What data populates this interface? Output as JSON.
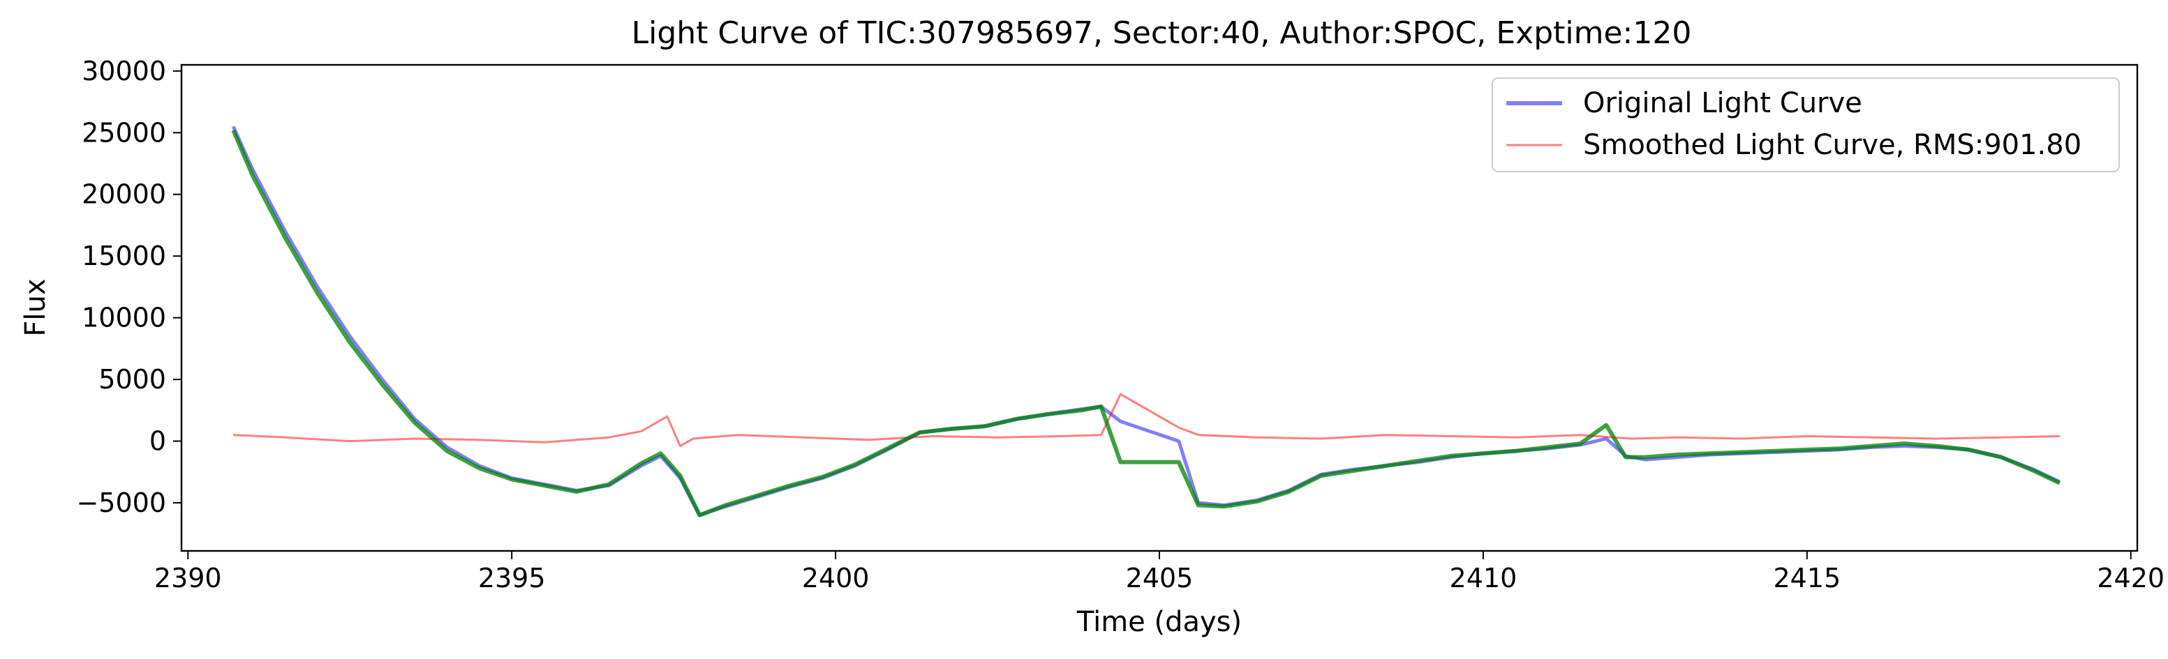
{
  "chart_data": {
    "type": "line",
    "title": "Light Curve of TIC:307985697, Sector:40, Author:SPOC, Exptime:120",
    "xlabel": "Time (days)",
    "ylabel": "Flux",
    "xlim": [
      2389.9,
      2420.1
    ],
    "ylim": [
      -8900,
      30500
    ],
    "xticks": [
      2390,
      2395,
      2400,
      2405,
      2410,
      2415,
      2420
    ],
    "yticks": [
      -5000,
      0,
      5000,
      10000,
      15000,
      20000,
      25000,
      30000
    ],
    "grid": false,
    "legend_position": "top-right",
    "series": [
      {
        "name": "Original Light Curve",
        "color": "#0000ff",
        "alpha": 0.5,
        "x": [
          2390.7,
          2391.0,
          2391.5,
          2392.0,
          2392.5,
          2393.0,
          2393.5,
          2394.0,
          2394.5,
          2395.0,
          2395.5,
          2396.0,
          2396.5,
          2397.0,
          2397.3,
          2397.6,
          2397.9,
          2398.3,
          2398.8,
          2399.3,
          2399.8,
          2400.3,
          2400.8,
          2401.3,
          2401.8,
          2402.3,
          2402.8,
          2403.3,
          2403.8,
          2404.1,
          2404.4,
          2405.3,
          2405.6,
          2406.0,
          2406.5,
          2407.0,
          2407.5,
          2408.0,
          2408.5,
          2409.0,
          2409.5,
          2410.0,
          2410.5,
          2411.0,
          2411.5,
          2411.9,
          2412.2,
          2412.5,
          2413.0,
          2413.5,
          2414.0,
          2414.5,
          2415.0,
          2415.5,
          2416.0,
          2416.5,
          2417.0,
          2417.5,
          2418.0,
          2418.5,
          2418.9
        ],
        "y": [
          25500,
          22000,
          17000,
          12500,
          8500,
          5000,
          1800,
          -500,
          -2000,
          -3000,
          -3500,
          -4000,
          -3600,
          -2000,
          -1200,
          -3000,
          -6000,
          -5300,
          -4500,
          -3700,
          -3000,
          -2000,
          -700,
          700,
          1000,
          1200,
          1800,
          2200,
          2600,
          2800,
          1600,
          0,
          -5000,
          -5200,
          -4800,
          -4000,
          -2700,
          -2300,
          -2000,
          -1700,
          -1300,
          -1000,
          -800,
          -600,
          -300,
          200,
          -1200,
          -1500,
          -1300,
          -1100,
          -1000,
          -900,
          -800,
          -700,
          -500,
          -400,
          -500,
          -700,
          -1300,
          -2300,
          -3300
        ]
      },
      {
        "name": "Smoothed Light Curve, RMS:901.80",
        "color": "#ff0000",
        "alpha": 0.5,
        "x": [
          2390.7,
          2391.5,
          2392.5,
          2393.5,
          2394.5,
          2395.5,
          2396.5,
          2397.0,
          2397.4,
          2397.6,
          2397.8,
          2398.5,
          2399.5,
          2400.5,
          2401.5,
          2402.5,
          2403.5,
          2404.1,
          2404.4,
          2405.3,
          2405.6,
          2406.5,
          2407.5,
          2408.5,
          2409.5,
          2410.5,
          2411.5,
          2412.0,
          2412.3,
          2413.0,
          2414.0,
          2415.0,
          2416.0,
          2417.0,
          2418.0,
          2418.9
        ],
        "y": [
          500,
          300,
          0,
          200,
          100,
          -100,
          300,
          800,
          2000,
          -400,
          200,
          500,
          300,
          100,
          400,
          300,
          400,
          500,
          3800,
          1100,
          500,
          300,
          200,
          500,
          400,
          300,
          500,
          300,
          200,
          300,
          200,
          400,
          300,
          200,
          300,
          400
        ]
      },
      {
        "color": "#008000",
        "alpha": 0.75,
        "x": [
          2390.7,
          2391.0,
          2391.5,
          2392.0,
          2392.5,
          2393.0,
          2393.5,
          2394.0,
          2394.5,
          2395.0,
          2395.5,
          2396.0,
          2396.5,
          2397.0,
          2397.3,
          2397.6,
          2397.9,
          2398.3,
          2398.8,
          2399.3,
          2399.8,
          2400.3,
          2400.8,
          2401.3,
          2401.8,
          2402.3,
          2402.8,
          2403.3,
          2403.8,
          2404.1,
          2404.4,
          2405.3,
          2405.6,
          2406.0,
          2406.5,
          2407.0,
          2407.5,
          2408.0,
          2408.5,
          2409.0,
          2409.5,
          2410.0,
          2410.5,
          2411.0,
          2411.5,
          2411.9,
          2412.2,
          2412.5,
          2413.0,
          2413.5,
          2414.0,
          2414.5,
          2415.0,
          2415.5,
          2416.0,
          2416.5,
          2417.0,
          2417.5,
          2418.0,
          2418.5,
          2418.9
        ],
        "y": [
          25200,
          21500,
          16500,
          12000,
          8000,
          4600,
          1500,
          -800,
          -2200,
          -3100,
          -3600,
          -4100,
          -3500,
          -1800,
          -1000,
          -2800,
          -6000,
          -5200,
          -4400,
          -3600,
          -2900,
          -1900,
          -600,
          700,
          1000,
          1200,
          1800,
          2200,
          2500,
          2800,
          -1700,
          -1700,
          -5200,
          -5300,
          -4900,
          -4100,
          -2800,
          -2400,
          -2000,
          -1600,
          -1200,
          -1000,
          -800,
          -500,
          -200,
          1300,
          -1300,
          -1300,
          -1100,
          -1000,
          -900,
          -800,
          -700,
          -600,
          -400,
          -200,
          -400,
          -700,
          -1300,
          -2400,
          -3400
        ]
      }
    ]
  }
}
